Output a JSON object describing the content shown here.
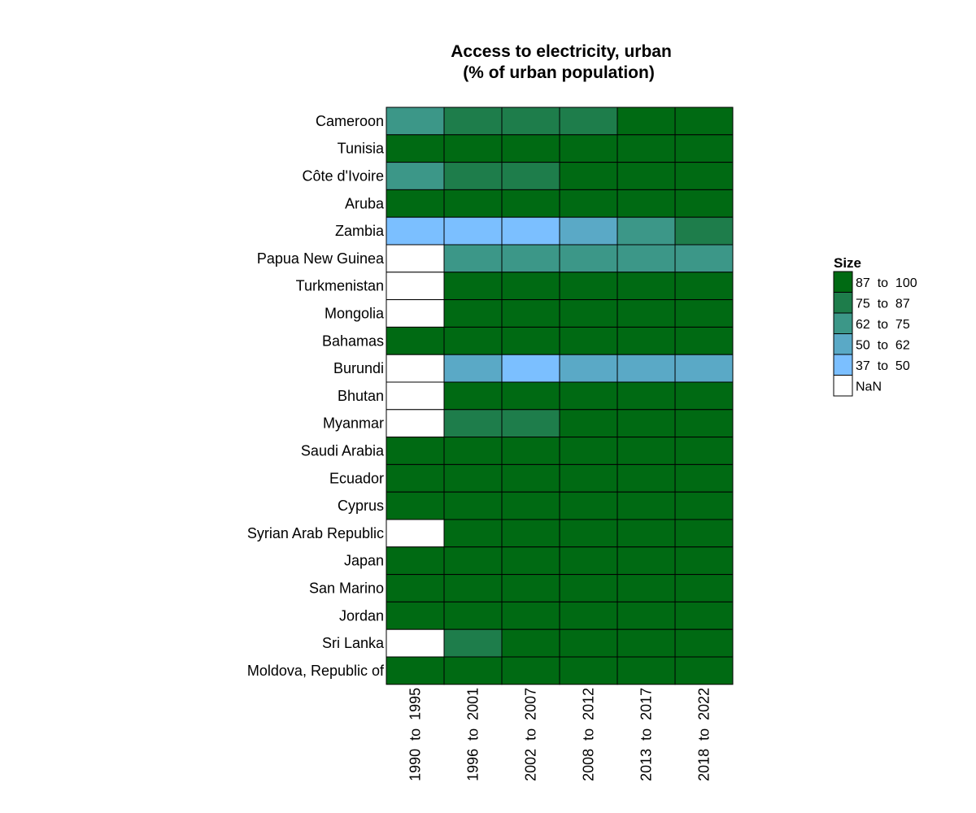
{
  "chart_data": {
    "type": "heatmap",
    "title_lines": [
      "Access to electricity, urban",
      "(% of urban population)"
    ],
    "xlabel": "",
    "ylabel": "",
    "columns": [
      "1990  to  1995",
      "1996  to  2001",
      "2002  to  2007",
      "2008  to  2012",
      "2013  to  2017",
      "2018  to  2022"
    ],
    "rows": [
      "Cameroon",
      "Tunisia",
      "Côte d'Ivoire",
      "Aruba",
      "Zambia",
      "Papua New Guinea",
      "Turkmenistan",
      "Mongolia",
      "Bahamas",
      "Burundi",
      "Bhutan",
      "Myanmar",
      "Saudi Arabia",
      "Ecuador",
      "Cyprus",
      "Syrian Arab Republic",
      "Japan",
      "San Marino",
      "Jordan",
      "Sri Lanka",
      "Moldova, Republic of"
    ],
    "cell_bins": [
      [
        "62 to 75",
        "75 to 87",
        "75 to 87",
        "75 to 87",
        "87 to 100",
        "87 to 100"
      ],
      [
        "87 to 100",
        "87 to 100",
        "87 to 100",
        "87 to 100",
        "87 to 100",
        "87 to 100"
      ],
      [
        "62 to 75",
        "75 to 87",
        "75 to 87",
        "87 to 100",
        "87 to 100",
        "87 to 100"
      ],
      [
        "87 to 100",
        "87 to 100",
        "87 to 100",
        "87 to 100",
        "87 to 100",
        "87 to 100"
      ],
      [
        "37 to 50",
        "37 to 50",
        "37 to 50",
        "50 to 62",
        "62 to 75",
        "75 to 87"
      ],
      [
        "NaN",
        "62 to 75",
        "62 to 75",
        "62 to 75",
        "62 to 75",
        "62 to 75"
      ],
      [
        "NaN",
        "87 to 100",
        "87 to 100",
        "87 to 100",
        "87 to 100",
        "87 to 100"
      ],
      [
        "NaN",
        "87 to 100",
        "87 to 100",
        "87 to 100",
        "87 to 100",
        "87 to 100"
      ],
      [
        "87 to 100",
        "87 to 100",
        "87 to 100",
        "87 to 100",
        "87 to 100",
        "87 to 100"
      ],
      [
        "NaN",
        "50 to 62",
        "37 to 50",
        "50 to 62",
        "50 to 62",
        "50 to 62"
      ],
      [
        "NaN",
        "87 to 100",
        "87 to 100",
        "87 to 100",
        "87 to 100",
        "87 to 100"
      ],
      [
        "NaN",
        "75 to 87",
        "75 to 87",
        "87 to 100",
        "87 to 100",
        "87 to 100"
      ],
      [
        "87 to 100",
        "87 to 100",
        "87 to 100",
        "87 to 100",
        "87 to 100",
        "87 to 100"
      ],
      [
        "87 to 100",
        "87 to 100",
        "87 to 100",
        "87 to 100",
        "87 to 100",
        "87 to 100"
      ],
      [
        "87 to 100",
        "87 to 100",
        "87 to 100",
        "87 to 100",
        "87 to 100",
        "87 to 100"
      ],
      [
        "NaN",
        "87 to 100",
        "87 to 100",
        "87 to 100",
        "87 to 100",
        "87 to 100"
      ],
      [
        "87 to 100",
        "87 to 100",
        "87 to 100",
        "87 to 100",
        "87 to 100",
        "87 to 100"
      ],
      [
        "87 to 100",
        "87 to 100",
        "87 to 100",
        "87 to 100",
        "87 to 100",
        "87 to 100"
      ],
      [
        "87 to 100",
        "87 to 100",
        "87 to 100",
        "87 to 100",
        "87 to 100",
        "87 to 100"
      ],
      [
        "NaN",
        "75 to 87",
        "87 to 100",
        "87 to 100",
        "87 to 100",
        "87 to 100"
      ],
      [
        "87 to 100",
        "87 to 100",
        "87 to 100",
        "87 to 100",
        "87 to 100",
        "87 to 100"
      ]
    ],
    "legend": {
      "title": "Size",
      "position": "right",
      "items": [
        {
          "key": "87 to 100",
          "label": "87  to  100",
          "color": "#006a13"
        },
        {
          "key": "75 to 87",
          "label": "75  to  87",
          "color": "#1e7d4b"
        },
        {
          "key": "62 to 75",
          "label": "62  to  75",
          "color": "#3c9788"
        },
        {
          "key": "50 to 62",
          "label": "50  to  62",
          "color": "#5aa9c6"
        },
        {
          "key": "37 to 50",
          "label": "37  to  50",
          "color": "#7bbfff"
        },
        {
          "key": "NaN",
          "label": "NaN",
          "color": "#ffffff"
        }
      ]
    },
    "grid_line_color": "#000000"
  }
}
